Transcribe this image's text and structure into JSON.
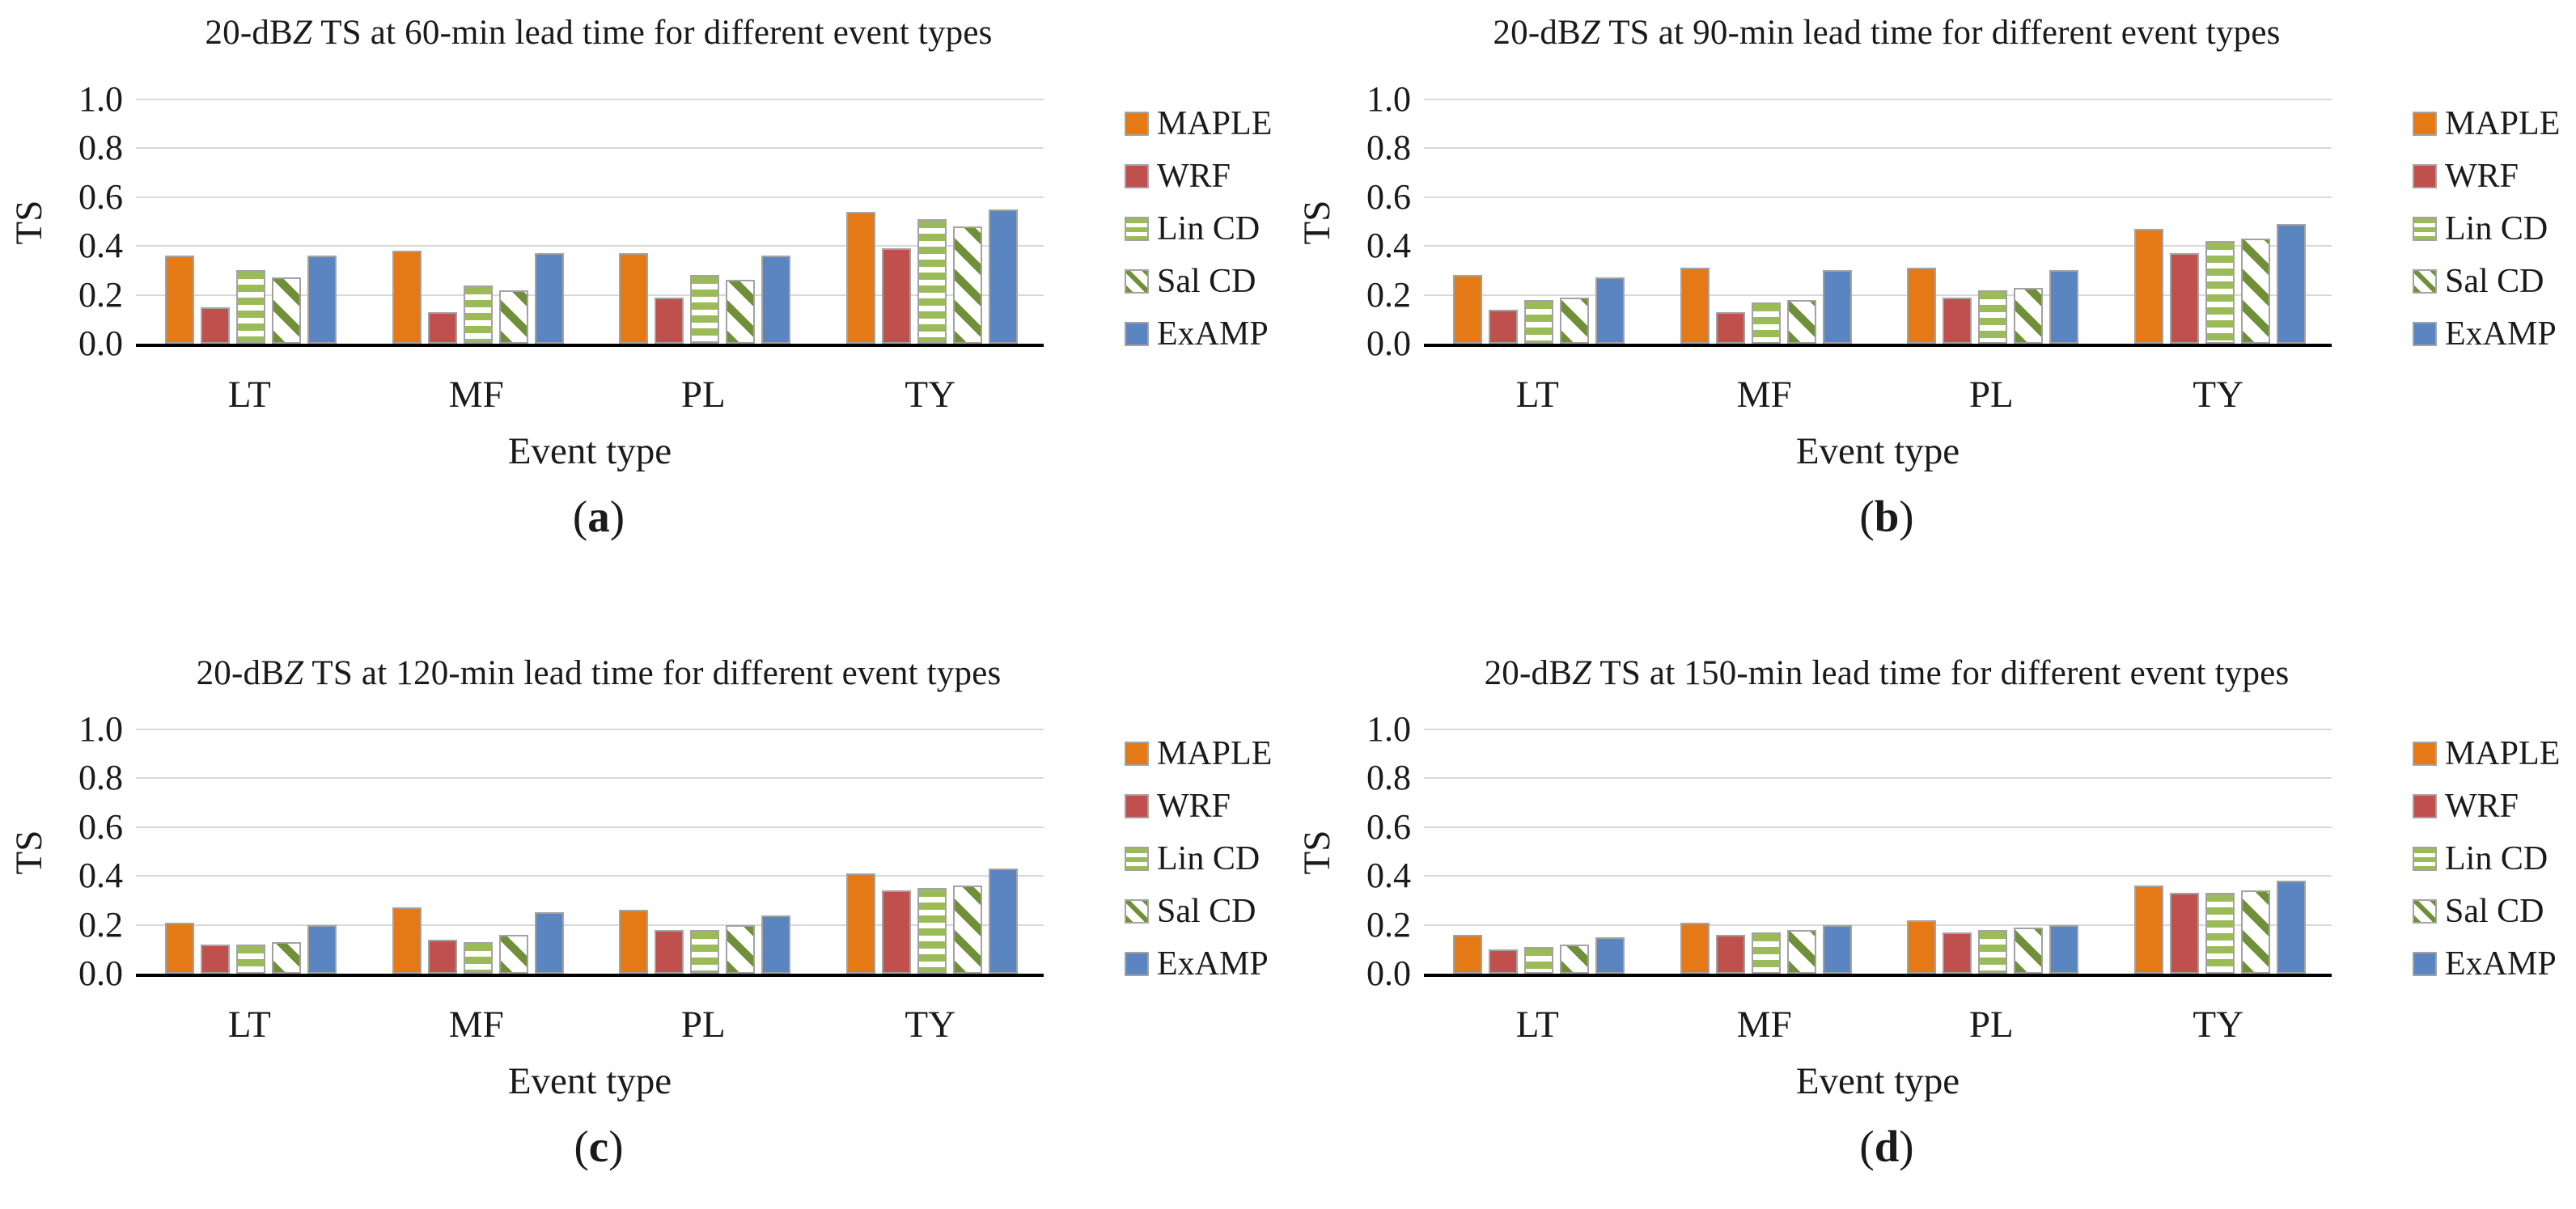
{
  "figure": {
    "y_axis_label": "TS",
    "x_axis_label": "Event type",
    "y_tick_labels": [
      "1.0",
      "0.8",
      "0.6",
      "0.4",
      "0.2",
      "0.0"
    ],
    "categories": [
      "LT",
      "MF",
      "PL",
      "TY"
    ],
    "series_names": [
      "MAPLE",
      "WRF",
      "Lin CD",
      "Sal CD",
      "ExAMP"
    ],
    "series_styles": {
      "MAPLE": {
        "pattern": "solid",
        "color": "#E47915"
      },
      "WRF": {
        "pattern": "solid",
        "color": "#C0504D"
      },
      "Lin CD": {
        "pattern": "horizontal-stripes",
        "color": "#9BBB59"
      },
      "Sal CD": {
        "pattern": "diagonal-stripes",
        "color": "#6F9038"
      },
      "ExAMP": {
        "pattern": "solid",
        "color": "#5B85C1"
      }
    },
    "colors": {
      "bar_border": "#A3A3A3",
      "gridline": "#D9D9D9",
      "axis_line": "#000000",
      "background": "#FFFFFF"
    }
  },
  "chart_data": [
    {
      "type": "bar",
      "panel_letter": "a",
      "title": "20-dBZ TS at 60-min lead time for different event types",
      "xlabel": "Event type",
      "ylabel": "TS",
      "ylim": [
        0,
        1
      ],
      "yticks": [
        0.0,
        0.2,
        0.4,
        0.6,
        0.8,
        1.0
      ],
      "grid": true,
      "legend_position": "right",
      "categories": [
        "LT",
        "MF",
        "PL",
        "TY"
      ],
      "series": [
        {
          "name": "MAPLE",
          "values": [
            0.36,
            0.38,
            0.37,
            0.54
          ]
        },
        {
          "name": "WRF",
          "values": [
            0.15,
            0.13,
            0.19,
            0.39
          ]
        },
        {
          "name": "Lin CD",
          "values": [
            0.3,
            0.24,
            0.28,
            0.51
          ]
        },
        {
          "name": "Sal CD",
          "values": [
            0.27,
            0.22,
            0.26,
            0.48
          ]
        },
        {
          "name": "ExAMP",
          "values": [
            0.36,
            0.37,
            0.36,
            0.55
          ]
        }
      ]
    },
    {
      "type": "bar",
      "panel_letter": "b",
      "title": "20-dBZ TS at 90-min lead time for different event types",
      "xlabel": "Event type",
      "ylabel": "TS",
      "ylim": [
        0,
        1
      ],
      "yticks": [
        0.0,
        0.2,
        0.4,
        0.6,
        0.8,
        1.0
      ],
      "grid": true,
      "legend_position": "right",
      "categories": [
        "LT",
        "MF",
        "PL",
        "TY"
      ],
      "series": [
        {
          "name": "MAPLE",
          "values": [
            0.28,
            0.31,
            0.31,
            0.47
          ]
        },
        {
          "name": "WRF",
          "values": [
            0.14,
            0.13,
            0.19,
            0.37
          ]
        },
        {
          "name": "Lin CD",
          "values": [
            0.18,
            0.17,
            0.22,
            0.42
          ]
        },
        {
          "name": "Sal CD",
          "values": [
            0.19,
            0.18,
            0.23,
            0.43
          ]
        },
        {
          "name": "ExAMP",
          "values": [
            0.27,
            0.3,
            0.3,
            0.49
          ]
        }
      ]
    },
    {
      "type": "bar",
      "panel_letter": "c",
      "title": "20-dBZ TS at 120-min lead time for different event types",
      "xlabel": "Event type",
      "ylabel": "TS",
      "ylim": [
        0,
        1
      ],
      "yticks": [
        0.0,
        0.2,
        0.4,
        0.6,
        0.8,
        1.0
      ],
      "grid": true,
      "legend_position": "right",
      "categories": [
        "LT",
        "MF",
        "PL",
        "TY"
      ],
      "series": [
        {
          "name": "MAPLE",
          "values": [
            0.21,
            0.27,
            0.26,
            0.41
          ]
        },
        {
          "name": "WRF",
          "values": [
            0.12,
            0.14,
            0.18,
            0.34
          ]
        },
        {
          "name": "Lin CD",
          "values": [
            0.12,
            0.13,
            0.18,
            0.35
          ]
        },
        {
          "name": "Sal CD",
          "values": [
            0.13,
            0.16,
            0.2,
            0.36
          ]
        },
        {
          "name": "ExAMP",
          "values": [
            0.2,
            0.25,
            0.24,
            0.43
          ]
        }
      ]
    },
    {
      "type": "bar",
      "panel_letter": "d",
      "title": "20-dBZ TS at 150-min lead time for different event types",
      "xlabel": "Event type",
      "ylabel": "TS",
      "ylim": [
        0,
        1
      ],
      "yticks": [
        0.0,
        0.2,
        0.4,
        0.6,
        0.8,
        1.0
      ],
      "grid": true,
      "legend_position": "right",
      "categories": [
        "LT",
        "MF",
        "PL",
        "TY"
      ],
      "series": [
        {
          "name": "MAPLE",
          "values": [
            0.16,
            0.21,
            0.22,
            0.36
          ]
        },
        {
          "name": "WRF",
          "values": [
            0.1,
            0.16,
            0.17,
            0.33
          ]
        },
        {
          "name": "Lin CD",
          "values": [
            0.11,
            0.17,
            0.18,
            0.33
          ]
        },
        {
          "name": "Sal CD",
          "values": [
            0.12,
            0.18,
            0.19,
            0.34
          ]
        },
        {
          "name": "ExAMP",
          "values": [
            0.15,
            0.2,
            0.2,
            0.38
          ]
        }
      ]
    }
  ]
}
